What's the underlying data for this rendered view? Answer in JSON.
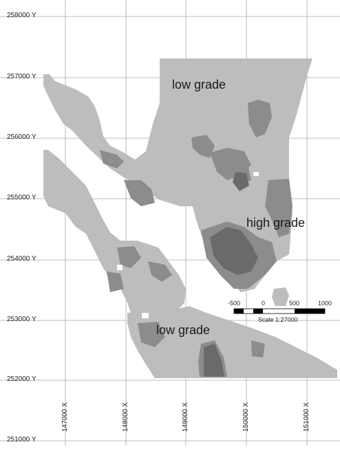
{
  "map": {
    "y_axis_labels": [
      "258000 Y",
      "257000 Y",
      "256000 Y",
      "255000 Y",
      "254000 Y",
      "253000 Y",
      "252000 Y",
      "251000 Y"
    ],
    "x_axis_labels": [
      "147000 X",
      "148000 X",
      "149000 X",
      "150000 X",
      "151000 X"
    ],
    "zones": {
      "low_grade_top": "low grade",
      "high_grade": "high grade",
      "low_grade_bottom": "low grade"
    },
    "scale_bar": {
      "ticks": [
        "-500",
        "0",
        "500",
        "1000"
      ],
      "label": "Scale 1:27000"
    },
    "colors": {
      "low_grade": "#bdbdbd",
      "medium_grade": "#8c8c8c",
      "high_grade": "#6a6a6a",
      "grid": "#a9a9a9",
      "background": "#ffffff"
    }
  }
}
